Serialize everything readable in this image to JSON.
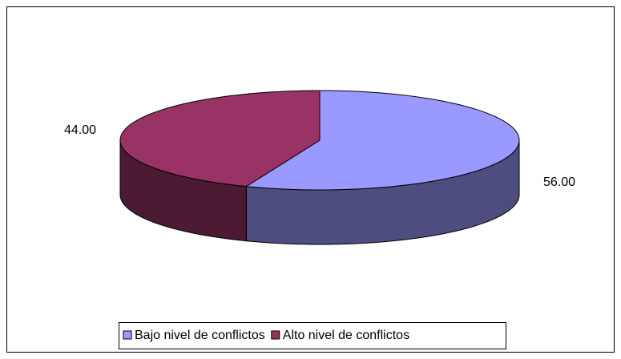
{
  "chart_data": {
    "type": "pie3d",
    "categories": [
      "Bajo nivel de conflictos",
      "Alto nivel de conflictos"
    ],
    "values": [
      56,
      44
    ],
    "value_labels": [
      "56.00",
      "44.00"
    ],
    "colors": [
      "#9999ff",
      "#993366"
    ],
    "legend": "bottom"
  }
}
